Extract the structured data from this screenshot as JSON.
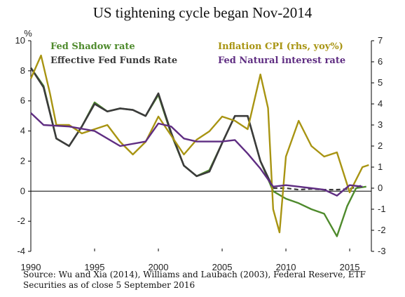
{
  "title": "US tightening cycle began Nov-2014",
  "source": "Source: Wu and Xia (2014), Williams and Laubach (2003), Federal Reserve, ETF Securities as of close 5 September 2016",
  "chart_data": {
    "type": "line",
    "title": "US tightening cycle began Nov-2014",
    "ylabel_left": "%",
    "ylim_left": [
      -4,
      10
    ],
    "ylim_right": [
      -3,
      7
    ],
    "y_ticks_left": [
      "-4",
      "-2",
      "0",
      "2",
      "4",
      "6",
      "8",
      "10"
    ],
    "y_ticks_right": [
      "-3",
      "-2",
      "-1",
      "0",
      "1",
      "2",
      "3",
      "4",
      "5",
      "6",
      "7"
    ],
    "x_ticks": [
      "1990",
      "1995",
      "2000",
      "2005",
      "2010",
      "2015"
    ],
    "xlim": [
      1990,
      2016.7
    ],
    "legend_placement": "top",
    "series": [
      {
        "name": "Fed Shadow rate",
        "axis": "left",
        "color": "#4e8a2c",
        "points": [
          [
            1990,
            8.2
          ],
          [
            1991,
            7.0
          ],
          [
            1992,
            3.5
          ],
          [
            1993,
            3.0
          ],
          [
            1994,
            4.3
          ],
          [
            1995,
            5.9
          ],
          [
            1996,
            5.3
          ],
          [
            1997,
            5.5
          ],
          [
            1998,
            5.4
          ],
          [
            1999,
            5.0
          ],
          [
            2000,
            6.4
          ],
          [
            2001,
            3.8
          ],
          [
            2002,
            1.7
          ],
          [
            2003,
            1.0
          ],
          [
            2004,
            1.4
          ],
          [
            2005,
            3.2
          ],
          [
            2006,
            5.0
          ],
          [
            2007,
            5.0
          ],
          [
            2008,
            2.0
          ],
          [
            2009,
            0.0
          ],
          [
            2010,
            -0.5
          ],
          [
            2011,
            -0.8
          ],
          [
            2012,
            -1.2
          ],
          [
            2013,
            -1.5
          ],
          [
            2014,
            -3.0
          ],
          [
            2014.8,
            -1.0
          ],
          [
            2015.5,
            0.2
          ],
          [
            2016.3,
            0.3
          ]
        ]
      },
      {
        "name": "Effective Fed Funds Rate",
        "axis": "left",
        "color": "#3b3b3b",
        "dashed_from": 2009,
        "points": [
          [
            1990,
            8.2
          ],
          [
            1991,
            6.9
          ],
          [
            1992,
            3.5
          ],
          [
            1993,
            3.0
          ],
          [
            1994,
            4.3
          ],
          [
            1995,
            5.8
          ],
          [
            1996,
            5.3
          ],
          [
            1997,
            5.5
          ],
          [
            1998,
            5.4
          ],
          [
            1999,
            5.0
          ],
          [
            2000,
            6.5
          ],
          [
            2001,
            3.9
          ],
          [
            2002,
            1.7
          ],
          [
            2003,
            1.0
          ],
          [
            2004,
            1.3
          ],
          [
            2005,
            3.2
          ],
          [
            2006,
            5.0
          ],
          [
            2007,
            5.0
          ],
          [
            2008,
            2.0
          ],
          [
            2009,
            0.2
          ],
          [
            2010,
            0.2
          ],
          [
            2011,
            0.1
          ],
          [
            2012,
            0.15
          ],
          [
            2013,
            0.1
          ],
          [
            2014,
            0.1
          ],
          [
            2015,
            0.15
          ],
          [
            2016,
            0.4
          ]
        ]
      },
      {
        "name": "Inflation CPI (rhs, yoy%)",
        "axis": "right",
        "color": "#a89412",
        "points": [
          [
            1990,
            5.2
          ],
          [
            1990.8,
            6.3
          ],
          [
            1991.5,
            4.5
          ],
          [
            1992,
            3.0
          ],
          [
            1993,
            3.0
          ],
          [
            1994,
            2.6
          ],
          [
            1995,
            2.8
          ],
          [
            1996,
            3.0
          ],
          [
            1997,
            2.2
          ],
          [
            1998,
            1.6
          ],
          [
            1999,
            2.2
          ],
          [
            2000,
            3.4
          ],
          [
            2001,
            2.5
          ],
          [
            2002,
            1.6
          ],
          [
            2003,
            2.3
          ],
          [
            2004,
            2.7
          ],
          [
            2005,
            3.4
          ],
          [
            2006,
            3.2
          ],
          [
            2007,
            2.8
          ],
          [
            2008,
            5.4
          ],
          [
            2008.6,
            3.8
          ],
          [
            2009,
            -1.0
          ],
          [
            2009.5,
            -2.1
          ],
          [
            2010,
            1.5
          ],
          [
            2011,
            3.2
          ],
          [
            2012,
            2.0
          ],
          [
            2013,
            1.5
          ],
          [
            2014,
            1.7
          ],
          [
            2015,
            -0.2
          ],
          [
            2016,
            1.0
          ],
          [
            2016.5,
            1.1
          ]
        ]
      },
      {
        "name": "Fed Natural interest rate",
        "axis": "left",
        "color": "#5f2d82",
        "points": [
          [
            1990,
            5.2
          ],
          [
            1991,
            4.4
          ],
          [
            1993,
            4.3
          ],
          [
            1995,
            4.0
          ],
          [
            1997,
            3.0
          ],
          [
            1999,
            3.3
          ],
          [
            2000,
            4.5
          ],
          [
            2001,
            4.3
          ],
          [
            2002,
            3.5
          ],
          [
            2003,
            3.3
          ],
          [
            2004,
            3.3
          ],
          [
            2005,
            3.3
          ],
          [
            2006,
            3.4
          ],
          [
            2007,
            2.5
          ],
          [
            2008,
            1.5
          ],
          [
            2009,
            0.3
          ],
          [
            2010,
            0.4
          ],
          [
            2011,
            0.3
          ],
          [
            2012,
            0.2
          ],
          [
            2013,
            0.1
          ],
          [
            2014,
            -0.3
          ],
          [
            2015,
            0.4
          ],
          [
            2016,
            0.3
          ]
        ]
      }
    ]
  }
}
